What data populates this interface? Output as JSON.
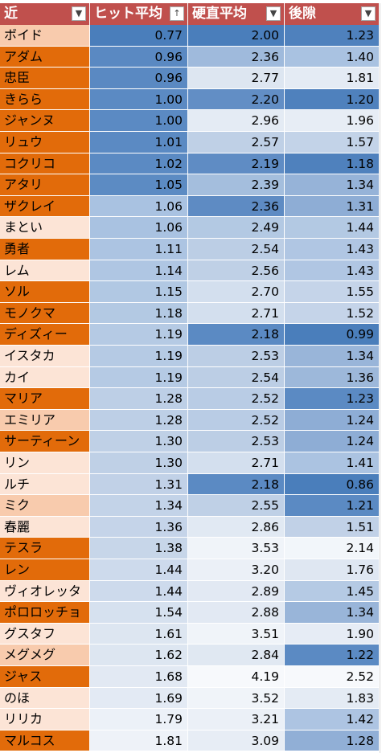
{
  "headers": [
    "近",
    "ヒット平均",
    "硬直平均",
    "後隙"
  ],
  "header_icons": [
    "dropdown-arrow-icon",
    "sort-ascending-icon",
    "dropdown-arrow-icon",
    "dropdown-arrow-icon"
  ],
  "header_icon_glyphs": [
    "▼",
    "↑",
    "▼",
    "▼"
  ],
  "rows": [
    {
      "name": "ボイド",
      "hit": "0.77",
      "stun": "2.00",
      "recovery": "1.23",
      "colors": [
        "#f8cbad",
        "#4a7ebb",
        "#4a7ebb",
        "#4f81bd"
      ]
    },
    {
      "name": "アダム",
      "hit": "0.96",
      "stun": "2.36",
      "recovery": "1.40",
      "colors": [
        "#e26b0a",
        "#5a89c2",
        "#9fbadc",
        "#a9c2e1"
      ]
    },
    {
      "name": "忠臣",
      "hit": "0.96",
      "stun": "2.77",
      "recovery": "1.81",
      "colors": [
        "#e26b0a",
        "#5a89c2",
        "#dde6f1",
        "#e4ebf4"
      ]
    },
    {
      "name": "きらら",
      "hit": "1.00",
      "stun": "2.20",
      "recovery": "1.20",
      "colors": [
        "#e26b0a",
        "#5b8ac3",
        "#628ec5",
        "#4f81bd"
      ]
    },
    {
      "name": "ジャンヌ",
      "hit": "1.00",
      "stun": "2.96",
      "recovery": "1.96",
      "colors": [
        "#e26b0a",
        "#5b8ac3",
        "#e4ebf4",
        "#e7edf5"
      ]
    },
    {
      "name": "リュウ",
      "hit": "1.01",
      "stun": "2.57",
      "recovery": "1.57",
      "colors": [
        "#e26b0a",
        "#5b8ac3",
        "#bfd0e6",
        "#c3d3e8"
      ]
    },
    {
      "name": "コクリコ",
      "hit": "1.02",
      "stun": "2.19",
      "recovery": "1.18",
      "colors": [
        "#e26b0a",
        "#5b8ac3",
        "#5f8cc4",
        "#4f81bd"
      ]
    },
    {
      "name": "アタリ",
      "hit": "1.05",
      "stun": "2.39",
      "recovery": "1.34",
      "colors": [
        "#e26b0a",
        "#5c8bc3",
        "#a4bedd",
        "#96b3d8"
      ]
    },
    {
      "name": "ザクレイ",
      "hit": "1.06",
      "stun": "2.36",
      "recovery": "1.31",
      "colors": [
        "#e26b0a",
        "#a9c2e1",
        "#5e8bc3",
        "#8eadd5"
      ]
    },
    {
      "name": "まとい",
      "hit": "1.06",
      "stun": "2.49",
      "recovery": "1.44",
      "colors": [
        "#fce4d6",
        "#a9c2e1",
        "#b3c9e3",
        "#b3c9e3"
      ]
    },
    {
      "name": "勇者",
      "hit": "1.11",
      "stun": "2.54",
      "recovery": "1.43",
      "colors": [
        "#e26b0a",
        "#acc4e2",
        "#bccee5",
        "#b0c6e3"
      ]
    },
    {
      "name": "レム",
      "hit": "1.14",
      "stun": "2.56",
      "recovery": "1.43",
      "colors": [
        "#fce4d6",
        "#afc6e3",
        "#bfd0e6",
        "#b0c6e3"
      ]
    },
    {
      "name": "ソル",
      "hit": "1.15",
      "stun": "2.70",
      "recovery": "1.55",
      "colors": [
        "#e26b0a",
        "#b1c8e3",
        "#d3dfee",
        "#c5d4e9"
      ]
    },
    {
      "name": "モノクマ",
      "hit": "1.18",
      "stun": "2.71",
      "recovery": "1.52",
      "colors": [
        "#e26b0a",
        "#b3c9e3",
        "#d3dfee",
        "#c5d4e9"
      ]
    },
    {
      "name": "ディズィー",
      "hit": "1.19",
      "stun": "2.18",
      "recovery": "0.99",
      "colors": [
        "#e26b0a",
        "#b5cae4",
        "#5b8ac3",
        "#4a7ebb"
      ]
    },
    {
      "name": "イスタカ",
      "hit": "1.19",
      "stun": "2.53",
      "recovery": "1.34",
      "colors": [
        "#fce4d6",
        "#b5cae4",
        "#bccee5",
        "#99b5d9"
      ]
    },
    {
      "name": "カイ",
      "hit": "1.19",
      "stun": "2.54",
      "recovery": "1.36",
      "colors": [
        "#fce4d6",
        "#b5cae4",
        "#bccee5",
        "#9db8da"
      ]
    },
    {
      "name": "マリア",
      "hit": "1.28",
      "stun": "2.52",
      "recovery": "1.23",
      "colors": [
        "#e26b0a",
        "#bdcfe6",
        "#b9cce5",
        "#5b8ac3"
      ]
    },
    {
      "name": "エミリア",
      "hit": "1.28",
      "stun": "2.52",
      "recovery": "1.24",
      "colors": [
        "#f8cbad",
        "#bdcfe6",
        "#b9cce5",
        "#8eadd5"
      ]
    },
    {
      "name": "サーティーン",
      "hit": "1.30",
      "stun": "2.53",
      "recovery": "1.24",
      "colors": [
        "#e26b0a",
        "#bfd0e6",
        "#bccee5",
        "#8eadd5"
      ]
    },
    {
      "name": "リン",
      "hit": "1.30",
      "stun": "2.71",
      "recovery": "1.41",
      "colors": [
        "#fce4d6",
        "#bfd0e6",
        "#d3dfee",
        "#abc3e1"
      ]
    },
    {
      "name": "ルチ",
      "hit": "1.31",
      "stun": "2.18",
      "recovery": "0.86",
      "colors": [
        "#fce4d6",
        "#c1d1e7",
        "#5b8ac3",
        "#4a7ebb"
      ]
    },
    {
      "name": "ミク",
      "hit": "1.34",
      "stun": "2.55",
      "recovery": "1.21",
      "colors": [
        "#f8cbad",
        "#c3d3e8",
        "#bfd0e6",
        "#5b8ac3"
      ]
    },
    {
      "name": "春麗",
      "hit": "1.36",
      "stun": "2.86",
      "recovery": "1.51",
      "colors": [
        "#fce4d6",
        "#c5d4e9",
        "#e1e9f3",
        "#c1d1e7"
      ]
    },
    {
      "name": "テスラ",
      "hit": "1.38",
      "stun": "3.53",
      "recovery": "2.14",
      "colors": [
        "#e26b0a",
        "#c7d6e9",
        "#f0f4f9",
        "#f2f6fa"
      ]
    },
    {
      "name": "レン",
      "hit": "1.44",
      "stun": "3.20",
      "recovery": "1.76",
      "colors": [
        "#e26b0a",
        "#cddaec",
        "#ebf0f7",
        "#dfe7f2"
      ]
    },
    {
      "name": "ヴィオレッタ",
      "hit": "1.44",
      "stun": "2.89",
      "recovery": "1.45",
      "colors": [
        "#fce4d6",
        "#cddaec",
        "#e2e9f3",
        "#b5cae4"
      ]
    },
    {
      "name": "ポロロッチョ",
      "hit": "1.54",
      "stun": "2.88",
      "recovery": "1.34",
      "colors": [
        "#e26b0a",
        "#d6e1ef",
        "#e2e9f3",
        "#99b5d9"
      ]
    },
    {
      "name": "グスタフ",
      "hit": "1.61",
      "stun": "3.51",
      "recovery": "1.90",
      "colors": [
        "#fce4d6",
        "#dde6f1",
        "#f0f4f9",
        "#e6ecf5"
      ]
    },
    {
      "name": "メグメグ",
      "hit": "1.62",
      "stun": "2.84",
      "recovery": "1.22",
      "colors": [
        "#f8cbad",
        "#dde6f1",
        "#e0e8f2",
        "#5b8ac3"
      ]
    },
    {
      "name": "ジャス",
      "hit": "1.68",
      "stun": "4.19",
      "recovery": "2.52",
      "colors": [
        "#e26b0a",
        "#e2e9f3",
        "#f7f9fc",
        "#f7f9fc"
      ]
    },
    {
      "name": "のほ",
      "hit": "1.69",
      "stun": "3.52",
      "recovery": "1.83",
      "colors": [
        "#fce4d6",
        "#e3eaf4",
        "#f0f4f9",
        "#e4ebf4"
      ]
    },
    {
      "name": "リリカ",
      "hit": "1.79",
      "stun": "3.21",
      "recovery": "1.42",
      "colors": [
        "#fce4d6",
        "#ecf1f8",
        "#ebf0f7",
        "#adc4e2"
      ]
    },
    {
      "name": "マルコス",
      "hit": "1.81",
      "stun": "3.09",
      "recovery": "1.28",
      "colors": [
        "#e26b0a",
        "#eef2f8",
        "#e7edf5",
        "#91afd6"
      ]
    }
  ]
}
